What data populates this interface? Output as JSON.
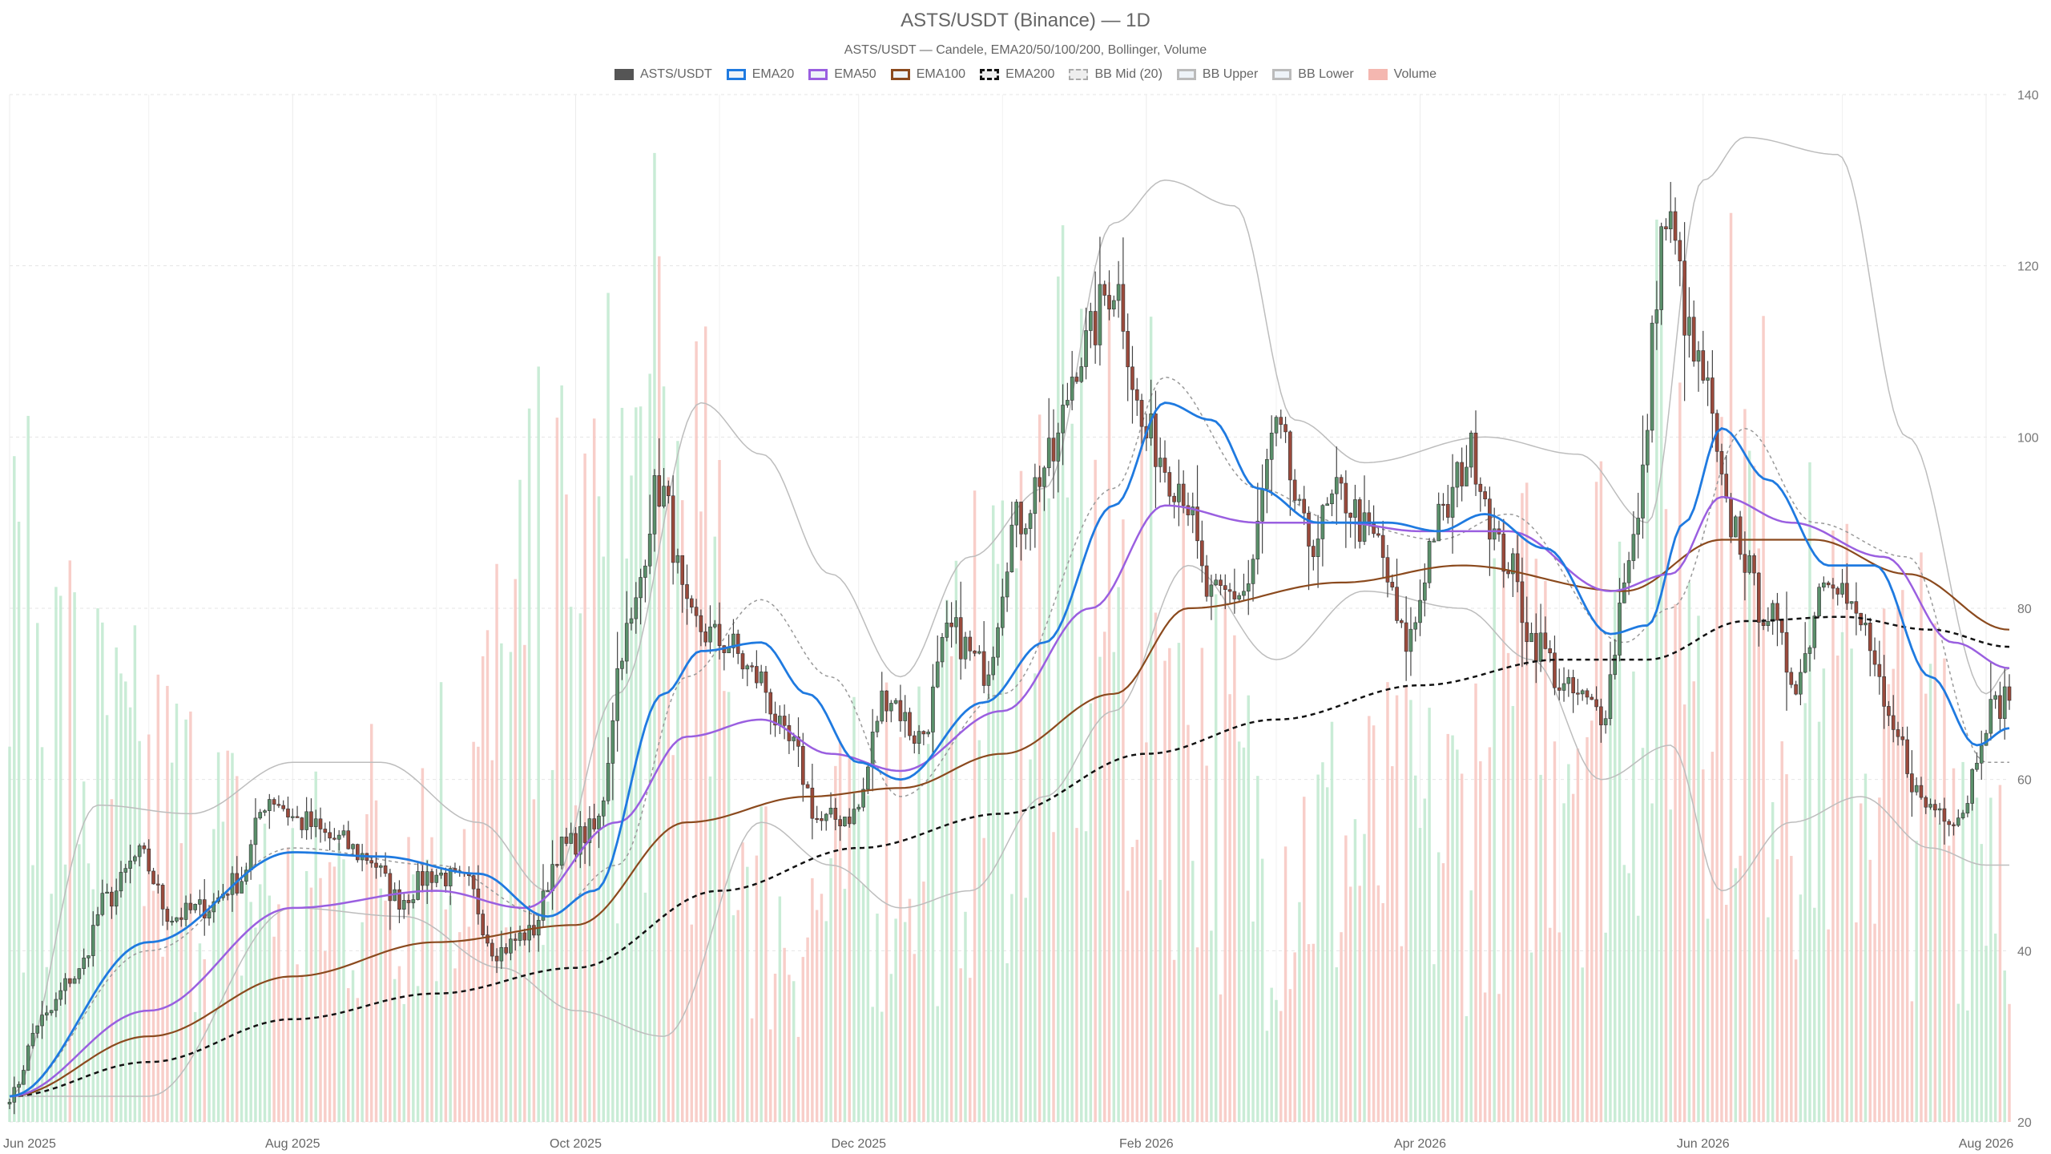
{
  "chart_data": {
    "type": "candlestick",
    "title": "ASTS/USDT (Binance) — 1D",
    "subtitle": "ASTS/USDT — Candele, EMA20/50/100/200, Bollinger, Volume",
    "legend": [
      {
        "key": "candles",
        "label": "ASTS/USDT",
        "color": "#555555",
        "style": "solid"
      },
      {
        "key": "ema20",
        "label": "EMA20",
        "color": "#1f7ae0",
        "style": "line"
      },
      {
        "key": "ema50",
        "label": "EMA50",
        "color": "#9a5fe0",
        "style": "line"
      },
      {
        "key": "ema100",
        "label": "EMA100",
        "color": "#8b4a1e",
        "style": "line"
      },
      {
        "key": "ema200",
        "label": "EMA200",
        "color": "#111111",
        "style": "dashed"
      },
      {
        "key": "bbmid",
        "label": "BB Mid (20)",
        "color": "#aaaaaa",
        "style": "dotted"
      },
      {
        "key": "bbupper",
        "label": "BB Upper",
        "color": "#bbbbbb",
        "style": "line"
      },
      {
        "key": "bblower",
        "label": "BB Lower",
        "color": "#bbbbbb",
        "style": "line"
      },
      {
        "key": "volume",
        "label": "Volume",
        "color": "#f4b7b0",
        "style": "solid"
      }
    ],
    "x_ticks": [
      "Jun 2025",
      "Aug 2025",
      "Oct 2025",
      "Dec 2025",
      "Feb 2026",
      "Apr 2026",
      "Jun 2026",
      "Aug 2026"
    ],
    "y_ticks": [
      "20",
      "40",
      "60",
      "80",
      "100",
      "120",
      "140"
    ],
    "ylim": [
      20,
      140
    ],
    "x_range": [
      "2025-06-01",
      "2026-08-06"
    ],
    "grid": true,
    "legend_position": "top-center",
    "colors": {
      "up": "#5a8f6a",
      "down": "#9a4a3c",
      "vol_up": "#bfe9cf",
      "vol_down": "#f7c6c0"
    },
    "anchors": {
      "close": [
        [
          "2025-06-01",
          23
        ],
        [
          "2025-06-08",
          32
        ],
        [
          "2025-06-15",
          37
        ],
        [
          "2025-06-22",
          46
        ],
        [
          "2025-06-29",
          51
        ],
        [
          "2025-07-06",
          44
        ],
        [
          "2025-07-13",
          45
        ],
        [
          "2025-07-20",
          48
        ],
        [
          "2025-07-27",
          58
        ],
        [
          "2025-08-03",
          55
        ],
        [
          "2025-08-10",
          53
        ],
        [
          "2025-08-17",
          51
        ],
        [
          "2025-08-24",
          46
        ],
        [
          "2025-08-31",
          49
        ],
        [
          "2025-09-07",
          48
        ],
        [
          "2025-09-14",
          40
        ],
        [
          "2025-09-21",
          42
        ],
        [
          "2025-09-28",
          52
        ],
        [
          "2025-10-05",
          54
        ],
        [
          "2025-10-12",
          77
        ],
        [
          "2025-10-19",
          94
        ],
        [
          "2025-10-26",
          78
        ],
        [
          "2025-11-02",
          76
        ],
        [
          "2025-11-09",
          72
        ],
        [
          "2025-11-16",
          64
        ],
        [
          "2025-11-23",
          55
        ],
        [
          "2025-11-30",
          56
        ],
        [
          "2025-12-07",
          70
        ],
        [
          "2025-12-14",
          65
        ],
        [
          "2025-12-21",
          77
        ],
        [
          "2025-12-28",
          73
        ],
        [
          "2026-01-04",
          90
        ],
        [
          "2026-01-11",
          97
        ],
        [
          "2026-01-18",
          110
        ],
        [
          "2026-01-25",
          118
        ],
        [
          "2026-02-01",
          100
        ],
        [
          "2026-02-08",
          95
        ],
        [
          "2026-02-15",
          81
        ],
        [
          "2026-02-22",
          82
        ],
        [
          "2026-03-01",
          100
        ],
        [
          "2026-03-08",
          88
        ],
        [
          "2026-03-15",
          93
        ],
        [
          "2026-03-22",
          88
        ],
        [
          "2026-03-29",
          76
        ],
        [
          "2026-04-05",
          90
        ],
        [
          "2026-04-12",
          98
        ],
        [
          "2026-04-19",
          86
        ],
        [
          "2026-04-26",
          76
        ],
        [
          "2026-05-03",
          70
        ],
        [
          "2026-05-10",
          68
        ],
        [
          "2026-05-17",
          88
        ],
        [
          "2026-05-24",
          125
        ],
        [
          "2026-05-31",
          108
        ],
        [
          "2026-06-07",
          90
        ],
        [
          "2026-06-14",
          80
        ],
        [
          "2026-06-21",
          72
        ],
        [
          "2026-06-28",
          85
        ],
        [
          "2026-07-05",
          78
        ],
        [
          "2026-07-12",
          65
        ],
        [
          "2026-07-19",
          57
        ],
        [
          "2026-07-26",
          56
        ],
        [
          "2026-08-02",
          68
        ],
        [
          "2026-08-06",
          70
        ]
      ],
      "ema20": [
        [
          "2025-06-01",
          23
        ],
        [
          "2025-07-01",
          41
        ],
        [
          "2025-08-01",
          51.5
        ],
        [
          "2025-08-20",
          51
        ],
        [
          "2025-09-10",
          49
        ],
        [
          "2025-09-25",
          44
        ],
        [
          "2025-10-05",
          47
        ],
        [
          "2025-10-20",
          70
        ],
        [
          "2025-10-28",
          75
        ],
        [
          "2025-11-10",
          76
        ],
        [
          "2025-11-20",
          70
        ],
        [
          "2025-12-01",
          62
        ],
        [
          "2025-12-10",
          60
        ],
        [
          "2025-12-28",
          69
        ],
        [
          "2026-01-10",
          76
        ],
        [
          "2026-01-25",
          92
        ],
        [
          "2026-02-05",
          104
        ],
        [
          "2026-02-15",
          102
        ],
        [
          "2026-02-25",
          94
        ],
        [
          "2026-03-10",
          90
        ],
        [
          "2026-03-25",
          90
        ],
        [
          "2026-04-05",
          89
        ],
        [
          "2026-04-15",
          91
        ],
        [
          "2026-04-28",
          87
        ],
        [
          "2026-05-12",
          77
        ],
        [
          "2026-05-20",
          78
        ],
        [
          "2026-05-28",
          90
        ],
        [
          "2026-06-05",
          101
        ],
        [
          "2026-06-15",
          95
        ],
        [
          "2026-06-28",
          85
        ],
        [
          "2026-07-08",
          85
        ],
        [
          "2026-07-20",
          72
        ],
        [
          "2026-07-30",
          64
        ],
        [
          "2026-08-06",
          66
        ]
      ],
      "ema50": [
        [
          "2025-06-01",
          23
        ],
        [
          "2025-07-01",
          33
        ],
        [
          "2025-08-01",
          45
        ],
        [
          "2025-09-01",
          47
        ],
        [
          "2025-09-20",
          45
        ],
        [
          "2025-10-10",
          55
        ],
        [
          "2025-10-25",
          65
        ],
        [
          "2025-11-10",
          67
        ],
        [
          "2025-11-25",
          63
        ],
        [
          "2025-12-10",
          61
        ],
        [
          "2026-01-01",
          68
        ],
        [
          "2026-01-20",
          80
        ],
        [
          "2026-02-05",
          92
        ],
        [
          "2026-02-25",
          90
        ],
        [
          "2026-03-15",
          90
        ],
        [
          "2026-04-01",
          89
        ],
        [
          "2026-04-20",
          89
        ],
        [
          "2026-05-12",
          82
        ],
        [
          "2026-05-25",
          84
        ],
        [
          "2026-06-05",
          93
        ],
        [
          "2026-06-20",
          90
        ],
        [
          "2026-07-10",
          86
        ],
        [
          "2026-07-25",
          76
        ],
        [
          "2026-08-06",
          73
        ]
      ],
      "ema100": [
        [
          "2025-06-01",
          23
        ],
        [
          "2025-07-01",
          30
        ],
        [
          "2025-08-01",
          37
        ],
        [
          "2025-09-01",
          41
        ],
        [
          "2025-10-01",
          43
        ],
        [
          "2025-10-25",
          55
        ],
        [
          "2025-11-20",
          58
        ],
        [
          "2025-12-10",
          59
        ],
        [
          "2026-01-01",
          63
        ],
        [
          "2026-01-25",
          70
        ],
        [
          "2026-02-10",
          80
        ],
        [
          "2026-03-15",
          83
        ],
        [
          "2026-04-10",
          85
        ],
        [
          "2026-05-15",
          82
        ],
        [
          "2026-06-05",
          88
        ],
        [
          "2026-06-25",
          88
        ],
        [
          "2026-07-15",
          84
        ],
        [
          "2026-08-06",
          77.5
        ]
      ],
      "ema200": [
        [
          "2025-06-01",
          23
        ],
        [
          "2025-07-01",
          27
        ],
        [
          "2025-08-01",
          32
        ],
        [
          "2025-09-01",
          35
        ],
        [
          "2025-10-01",
          38
        ],
        [
          "2025-11-01",
          47
        ],
        [
          "2025-12-01",
          52
        ],
        [
          "2026-01-01",
          56
        ],
        [
          "2026-02-01",
          63
        ],
        [
          "2026-03-01",
          67
        ],
        [
          "2026-04-01",
          71
        ],
        [
          "2026-05-01",
          74
        ],
        [
          "2026-05-20",
          74
        ],
        [
          "2026-06-10",
          78.5
        ],
        [
          "2026-07-01",
          79
        ],
        [
          "2026-07-20",
          77.5
        ],
        [
          "2026-08-06",
          75.5
        ]
      ],
      "bb_mid": [
        [
          "2025-06-01",
          23
        ],
        [
          "2025-07-01",
          40
        ],
        [
          "2025-08-01",
          52
        ],
        [
          "2025-09-01",
          50
        ],
        [
          "2025-09-25",
          44
        ],
        [
          "2025-10-10",
          50
        ],
        [
          "2025-10-25",
          72
        ],
        [
          "2025-11-10",
          81
        ],
        [
          "2025-11-25",
          72
        ],
        [
          "2025-12-10",
          58
        ],
        [
          "2026-01-01",
          70
        ],
        [
          "2026-01-25",
          94
        ],
        [
          "2026-02-05",
          107
        ],
        [
          "2026-02-25",
          94
        ],
        [
          "2026-03-15",
          90
        ],
        [
          "2026-04-05",
          88
        ],
        [
          "2026-04-20",
          91
        ],
        [
          "2026-05-15",
          76
        ],
        [
          "2026-05-25",
          80
        ],
        [
          "2026-06-10",
          101
        ],
        [
          "2026-06-25",
          90
        ],
        [
          "2026-07-15",
          86
        ],
        [
          "2026-08-01",
          62
        ],
        [
          "2026-08-06",
          62
        ]
      ],
      "bb_upper": [
        [
          "2025-06-01",
          23
        ],
        [
          "2025-06-20",
          57
        ],
        [
          "2025-07-10",
          56
        ],
        [
          "2025-08-01",
          62
        ],
        [
          "2025-08-20",
          62
        ],
        [
          "2025-09-10",
          55
        ],
        [
          "2025-09-25",
          47
        ],
        [
          "2025-10-10",
          70
        ],
        [
          "2025-10-28",
          104
        ],
        [
          "2025-11-10",
          98
        ],
        [
          "2025-11-25",
          84
        ],
        [
          "2025-12-10",
          72
        ],
        [
          "2025-12-25",
          86
        ],
        [
          "2026-01-10",
          94
        ],
        [
          "2026-01-25",
          125
        ],
        [
          "2026-02-05",
          130
        ],
        [
          "2026-02-20",
          127
        ],
        [
          "2026-03-05",
          102
        ],
        [
          "2026-03-20",
          97
        ],
        [
          "2026-04-15",
          100
        ],
        [
          "2026-05-05",
          98
        ],
        [
          "2026-05-20",
          90
        ],
        [
          "2026-06-01",
          130
        ],
        [
          "2026-06-10",
          135
        ],
        [
          "2026-06-30",
          133
        ],
        [
          "2026-07-15",
          100
        ],
        [
          "2026-08-01",
          70
        ],
        [
          "2026-08-06",
          73
        ]
      ],
      "bb_lower": [
        [
          "2025-06-01",
          23
        ],
        [
          "2025-07-01",
          23
        ],
        [
          "2025-08-01",
          45
        ],
        [
          "2025-08-25",
          44
        ],
        [
          "2025-09-15",
          38
        ],
        [
          "2025-10-01",
          33
        ],
        [
          "2025-10-20",
          30
        ],
        [
          "2025-11-10",
          55
        ],
        [
          "2025-11-25",
          50
        ],
        [
          "2025-12-10",
          45
        ],
        [
          "2025-12-25",
          47
        ],
        [
          "2026-01-10",
          58
        ],
        [
          "2026-01-25",
          68
        ],
        [
          "2026-02-10",
          85
        ],
        [
          "2026-03-01",
          74
        ],
        [
          "2026-03-20",
          82
        ],
        [
          "2026-04-10",
          80
        ],
        [
          "2026-04-25",
          74
        ],
        [
          "2026-05-10",
          60
        ],
        [
          "2026-05-25",
          64
        ],
        [
          "2026-06-05",
          47
        ],
        [
          "2026-06-20",
          55
        ],
        [
          "2026-07-05",
          58
        ],
        [
          "2026-07-20",
          52
        ],
        [
          "2026-08-01",
          50
        ],
        [
          "2026-08-06",
          50
        ]
      ],
      "volume_frac": [
        [
          "2025-06-01",
          0.4
        ],
        [
          "2025-07-01",
          0.28
        ],
        [
          "2025-08-01",
          0.2
        ],
        [
          "2025-09-01",
          0.28
        ],
        [
          "2025-10-01",
          0.45
        ],
        [
          "2025-10-20",
          0.55
        ],
        [
          "2025-11-15",
          0.18
        ],
        [
          "2025-12-15",
          0.3
        ],
        [
          "2026-01-15",
          0.5
        ],
        [
          "2026-02-01",
          0.45
        ],
        [
          "2026-03-01",
          0.25
        ],
        [
          "2026-04-01",
          0.25
        ],
        [
          "2026-05-01",
          0.4
        ],
        [
          "2026-06-01",
          0.55
        ],
        [
          "2026-07-01",
          0.35
        ],
        [
          "2026-08-06",
          0.3
        ]
      ]
    }
  }
}
